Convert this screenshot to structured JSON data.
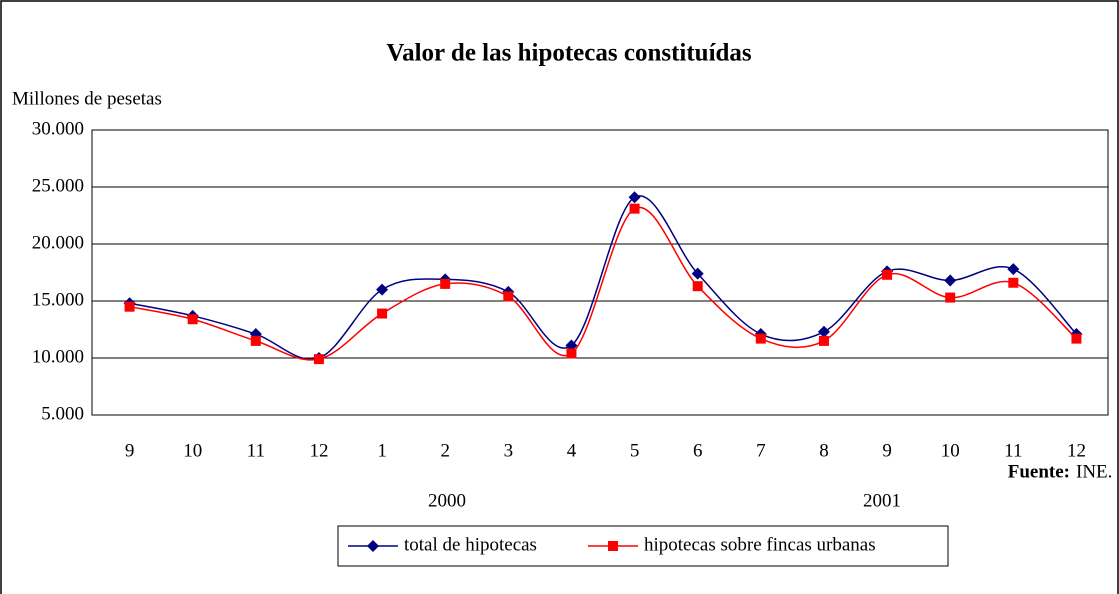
{
  "chart_data": {
    "type": "line",
    "title": "Valor de las hipotecas constituídas",
    "y_label": "Millones de pesetas",
    "categories": [
      "9",
      "10",
      "11",
      "12",
      "1",
      "2",
      "3",
      "4",
      "5",
      "6",
      "7",
      "8",
      "9",
      "10",
      "11",
      "12"
    ],
    "year_labels": [
      "2000",
      "2001"
    ],
    "source_label": "Fuente:",
    "source": "INE.",
    "series": [
      {
        "name": "total de hipotecas",
        "color": "#000080",
        "marker": "diamond",
        "values": [
          14800,
          13700,
          12100,
          10000,
          16000,
          16900,
          15800,
          11100,
          24100,
          17400,
          12100,
          12300,
          17600,
          16800,
          17800,
          12100
        ]
      },
      {
        "name": "hipotecas sobre fincas urbanas",
        "color": "#ff0000",
        "marker": "square",
        "values": [
          14500,
          13400,
          11500,
          9900,
          13900,
          16500,
          15400,
          10400,
          23100,
          16300,
          11700,
          11500,
          17300,
          15300,
          16600,
          11700
        ]
      }
    ],
    "ylim": [
      5000,
      30000
    ],
    "yticks": [
      {
        "value": 5000,
        "label": "5.000"
      },
      {
        "value": 10000,
        "label": "10.000"
      },
      {
        "value": 15000,
        "label": "15.000"
      },
      {
        "value": 20000,
        "label": "20.000"
      },
      {
        "value": 25000,
        "label": "25.000"
      },
      {
        "value": 30000,
        "label": "30.000"
      }
    ],
    "grid": true,
    "legend": "bottom"
  }
}
